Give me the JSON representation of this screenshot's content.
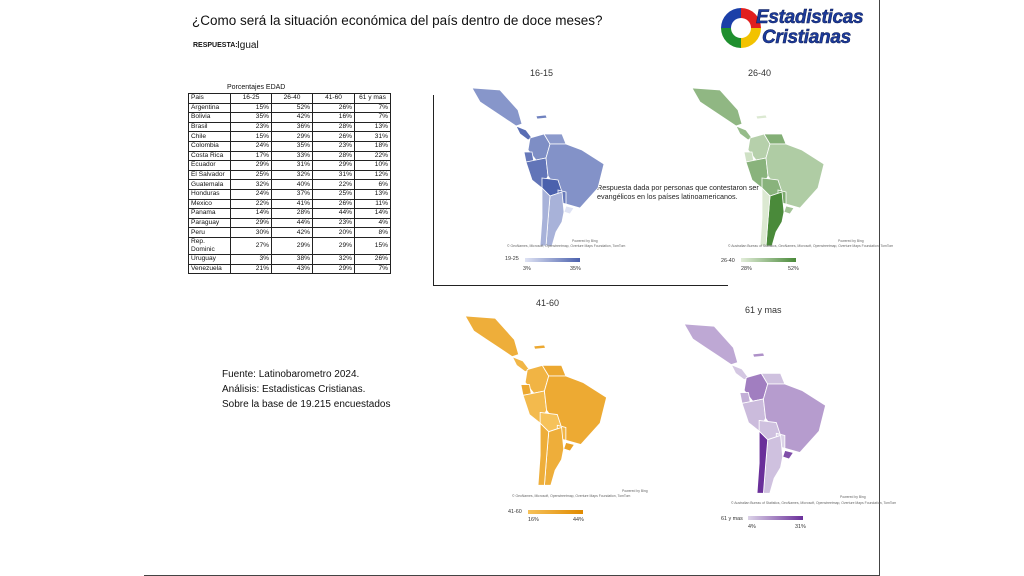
{
  "header": {
    "title": "¿Como será la situación económica del país dentro de doce meses?",
    "respuesta_label": "RESPUESTA:",
    "respuesta_value": "Igual"
  },
  "logo": {
    "line1": "Estadisticas",
    "line2": "Cristianas"
  },
  "table": {
    "caption": "Porcentajes EDAD",
    "headers": [
      "Pais",
      "16-25",
      "26-40",
      "41-60",
      "61 y mas"
    ],
    "rows": [
      [
        "Argentina",
        "15%",
        "52%",
        "26%",
        "7%"
      ],
      [
        "Bolivia",
        "35%",
        "42%",
        "16%",
        "7%"
      ],
      [
        "Brasil",
        "23%",
        "36%",
        "28%",
        "13%"
      ],
      [
        "Chile",
        "15%",
        "29%",
        "26%",
        "31%"
      ],
      [
        "Colombia",
        "24%",
        "35%",
        "23%",
        "18%"
      ],
      [
        "Costa Rica",
        "17%",
        "33%",
        "28%",
        "22%"
      ],
      [
        "Ecuador",
        "29%",
        "31%",
        "29%",
        "10%"
      ],
      [
        "El Salvador",
        "25%",
        "32%",
        "31%",
        "12%"
      ],
      [
        "Guatemala",
        "32%",
        "40%",
        "22%",
        "6%"
      ],
      [
        "Honduras",
        "24%",
        "37%",
        "25%",
        "13%"
      ],
      [
        "Mexico",
        "22%",
        "41%",
        "26%",
        "11%"
      ],
      [
        "Panama",
        "14%",
        "28%",
        "44%",
        "14%"
      ],
      [
        "Paraguay",
        "29%",
        "44%",
        "23%",
        "4%"
      ],
      [
        "Peru",
        "30%",
        "42%",
        "20%",
        "8%"
      ],
      [
        "Rep. Dominic",
        "27%",
        "29%",
        "29%",
        "15%"
      ],
      [
        "Uruguay",
        "3%",
        "38%",
        "32%",
        "26%"
      ],
      [
        "Venezuela",
        "21%",
        "43%",
        "29%",
        "7%"
      ]
    ]
  },
  "source": {
    "line1": "Fuente: Latinobarometro 2024.",
    "line2": "Análisis: Estadisticas Cristianas.",
    "line3": "Sobre la base de 19.215 encuestados"
  },
  "note": "Respuesta dada por personas que contestaron ser evangélicos en los países latinoamericanos.",
  "maps": {
    "m1": {
      "title": "16-15",
      "legend_label": "19-25",
      "min": "3%",
      "max": "35%",
      "light": "#dfe3f4",
      "dark": "#4b61ad",
      "powered": "Powered by Bing",
      "attribution": "© GeoNames, Microsoft, Openstreetmap, Overture Maps Foundation, TomTom"
    },
    "m2": {
      "title": "26-40",
      "legend_label": "26-40",
      "min": "28%",
      "max": "52%",
      "light": "#e2edd9",
      "dark": "#4a8a3a",
      "powered": "Powered by Bing",
      "attribution": "© Australian Bureau of Statistics, GeoNames, Microsoft, Openstreetmap, Overture Maps Foundation, TomTom"
    },
    "m3": {
      "title": "41-60",
      "legend_label": "41-60",
      "min": "16%",
      "max": "44%",
      "light": "#f6c25a",
      "dark": "#e08a00",
      "powered": "Powered by Bing",
      "attribution": "© GeoNames, Microsoft, Openstreetmap, Overture Maps Foundation, TomTom"
    },
    "m4": {
      "title": "61 y mas",
      "legend_label": "61 y mas",
      "min": "4%",
      "max": "31%",
      "light": "#dcd3e8",
      "dark": "#6a2f9a",
      "powered": "Powered by Bing",
      "attribution": "© Australian Bureau of Statistics, GeoNames, Microsoft, Openstreetmap, Overture Maps Foundation, TomTom"
    }
  }
}
